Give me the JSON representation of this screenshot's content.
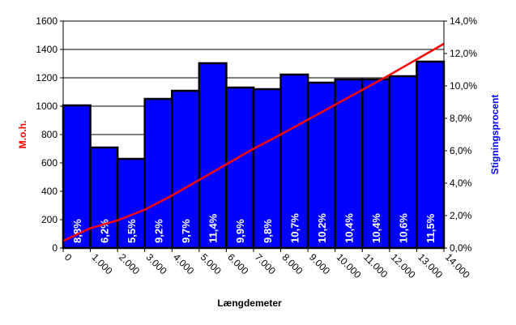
{
  "chart_data": {
    "type": "bar",
    "x_tick_labels": [
      "0",
      "1.000",
      "2.000",
      "3.000",
      "4.000",
      "5.000",
      "6.000",
      "7.000",
      "8.000",
      "9.000",
      "10.000",
      "11.000",
      "12.000",
      "13.000",
      "14.000"
    ],
    "xlabel": "Længdemeter",
    "ylabel_left": "M.o.h.",
    "ylabel_right": "Stigningsprocent",
    "ylim_left": [
      0,
      1600
    ],
    "ylim_right": [
      0,
      14
    ],
    "yticks_left": [
      "0",
      "200",
      "400",
      "600",
      "800",
      "1000",
      "1200",
      "1400",
      "1600"
    ],
    "yticks_right": [
      "0,0%",
      "2,0%",
      "4,0%",
      "6,0%",
      "8,0%",
      "10,0%",
      "12,0%",
      "14,0%"
    ],
    "series": [
      {
        "axis": "right",
        "kind": "bar",
        "color": "#0000ff",
        "values": [
          8.8,
          6.2,
          5.5,
          9.2,
          9.7,
          11.4,
          9.9,
          9.8,
          10.7,
          10.2,
          10.4,
          10.4,
          10.6,
          11.5
        ],
        "labels": [
          "8,8%",
          "6,2%",
          "5,5%",
          "9,2%",
          "9,7%",
          "11,4%",
          "9,9%",
          "9,8%",
          "10,7%",
          "10,2%",
          "10,4%",
          "10,4%",
          "10,6%",
          "11,5%"
        ]
      },
      {
        "axis": "left",
        "kind": "line",
        "color": "#ff0000",
        "x": [
          0,
          1000,
          2000,
          3000,
          4000,
          5000,
          6000,
          7000,
          8000,
          9000,
          10000,
          11000,
          12000,
          13000,
          14000
        ],
        "values": [
          50,
          140,
          195,
          270,
          370,
          480,
          590,
          700,
          800,
          905,
          1010,
          1115,
          1220,
          1330,
          1440
        ]
      }
    ],
    "colors": {
      "left_axis_title": "#ff0000",
      "right_axis_title": "#0000ff",
      "bar_fill": "#0000ff",
      "line": "#ff0000"
    },
    "grid": true,
    "legend": "none"
  }
}
